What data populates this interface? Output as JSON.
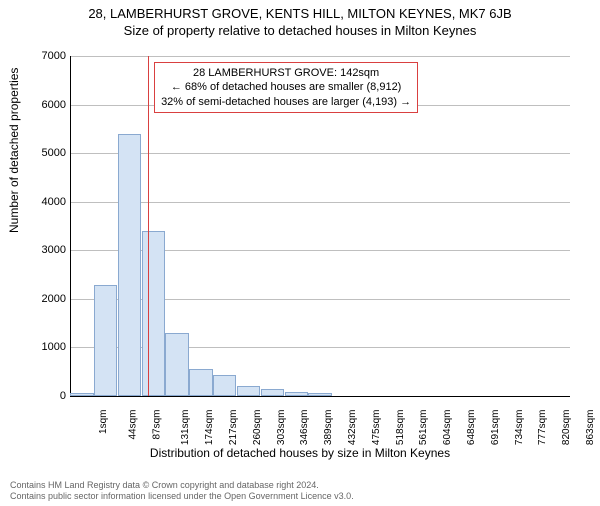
{
  "title_line1": "28, LAMBERHURST GROVE, KENTS HILL, MILTON KEYNES, MK7 6JB",
  "title_line2": "Size of property relative to detached houses in Milton Keynes",
  "ylabel": "Number of detached properties",
  "xlabel": "Distribution of detached houses by size in Milton Keynes",
  "footer_line1": "Contains HM Land Registry data © Crown copyright and database right 2024.",
  "footer_line2": "Contains public sector information licensed under the Open Government Licence v3.0.",
  "chart": {
    "type": "histogram",
    "ylim": [
      0,
      7000
    ],
    "ytick_step": 1000,
    "bar_fill": "#d4e3f4",
    "bar_stroke": "#8aa9d0",
    "bar_stroke_width": 1,
    "grid_color": "#bfbfbf",
    "axis_color": "#000000",
    "background_color": "#ffffff",
    "marker_value_sqm": 142,
    "marker_color": "#d94040",
    "marker_width": 1,
    "xtick_labels": [
      "1sqm",
      "44sqm",
      "87sqm",
      "131sqm",
      "174sqm",
      "217sqm",
      "260sqm",
      "303sqm",
      "346sqm",
      "389sqm",
      "432sqm",
      "475sqm",
      "518sqm",
      "561sqm",
      "604sqm",
      "648sqm",
      "691sqm",
      "734sqm",
      "777sqm",
      "820sqm",
      "863sqm"
    ],
    "xtick_fontsize": 10,
    "ytick_fontsize": 11,
    "label_fontsize": 12,
    "title_fontsize": 13,
    "bars": [
      {
        "x_label": "1sqm",
        "value": 60
      },
      {
        "x_label": "44sqm",
        "value": 2280
      },
      {
        "x_label": "87sqm",
        "value": 5400
      },
      {
        "x_label": "131sqm",
        "value": 3400
      },
      {
        "x_label": "174sqm",
        "value": 1300
      },
      {
        "x_label": "217sqm",
        "value": 550
      },
      {
        "x_label": "260sqm",
        "value": 430
      },
      {
        "x_label": "303sqm",
        "value": 200
      },
      {
        "x_label": "346sqm",
        "value": 150
      },
      {
        "x_label": "389sqm",
        "value": 80
      },
      {
        "x_label": "432sqm",
        "value": 60
      },
      {
        "x_label": "475sqm",
        "value": 0
      },
      {
        "x_label": "518sqm",
        "value": 0
      },
      {
        "x_label": "561sqm",
        "value": 0
      },
      {
        "x_label": "604sqm",
        "value": 0
      },
      {
        "x_label": "648sqm",
        "value": 0
      },
      {
        "x_label": "691sqm",
        "value": 0
      },
      {
        "x_label": "734sqm",
        "value": 0
      },
      {
        "x_label": "777sqm",
        "value": 0
      },
      {
        "x_label": "820sqm",
        "value": 0
      },
      {
        "x_label": "863sqm",
        "value": 0
      }
    ]
  },
  "annotation": {
    "line1": "28 LAMBERHURST GROVE: 142sqm",
    "line2": "← 68% of detached houses are smaller (8,912)",
    "line3": "32% of semi-detached houses are larger (4,193) →",
    "border_color": "#d94040",
    "text_color": "#000000",
    "fontsize": 11
  }
}
